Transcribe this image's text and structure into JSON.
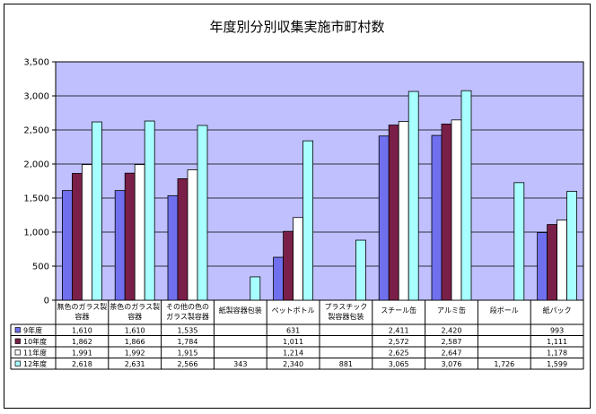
{
  "chart_data": {
    "type": "bar",
    "title": "年度別分別収集実施市町村数",
    "xlabel": "",
    "ylabel": "",
    "ylim": [
      0,
      3500
    ],
    "yticks": [
      "0",
      "500",
      "1,000",
      "1,500",
      "2,000",
      "2,500",
      "3,000",
      "3,500"
    ],
    "ytick_values": [
      0,
      500,
      1000,
      1500,
      2000,
      2500,
      3000,
      3500
    ],
    "grid": true,
    "legend": "table-left",
    "categories": [
      [
        "無色のガラス製",
        "容器"
      ],
      [
        "茶色のガラス製",
        "容器"
      ],
      [
        "その他の色の",
        "ガラス製容器"
      ],
      [
        "紙製容器包装"
      ],
      [
        "ペットボトル"
      ],
      [
        "プラスチック",
        "製容器包装"
      ],
      [
        "スチール缶"
      ],
      [
        "アルミ缶"
      ],
      [
        "段ボール"
      ],
      [
        "紙パック"
      ]
    ],
    "series": [
      {
        "name": "9年度",
        "color": "#7070ee",
        "values": [
          1610,
          1610,
          1535,
          null,
          631,
          null,
          2411,
          2420,
          null,
          993
        ],
        "labels": [
          "1,610",
          "1,610",
          "1,535",
          "",
          "631",
          "",
          "2,411",
          "2,420",
          "",
          "993"
        ]
      },
      {
        "name": "10年度",
        "color": "#7a2048",
        "values": [
          1862,
          1866,
          1784,
          null,
          1011,
          null,
          2572,
          2587,
          null,
          1111
        ],
        "labels": [
          "1,862",
          "1,866",
          "1,784",
          "",
          "1,011",
          "",
          "2,572",
          "2,587",
          "",
          "1,111"
        ]
      },
      {
        "name": "11年度",
        "color": "#ffffff",
        "values": [
          1991,
          1992,
          1915,
          null,
          1214,
          null,
          2625,
          2647,
          null,
          1178
        ],
        "labels": [
          "1,991",
          "1,992",
          "1,915",
          "",
          "1,214",
          "",
          "2,625",
          "2,647",
          "",
          "1,178"
        ]
      },
      {
        "name": "12年度",
        "color": "#a8ffff",
        "values": [
          2618,
          2631,
          2566,
          343,
          2340,
          881,
          3065,
          3076,
          1726,
          1599
        ],
        "labels": [
          "2,618",
          "2,631",
          "2,566",
          "343",
          "2,340",
          "881",
          "3,065",
          "3,076",
          "1,726",
          "1,599"
        ]
      }
    ],
    "colors": {
      "plot_bg": "#c0c0ff",
      "border": "#000000"
    }
  }
}
